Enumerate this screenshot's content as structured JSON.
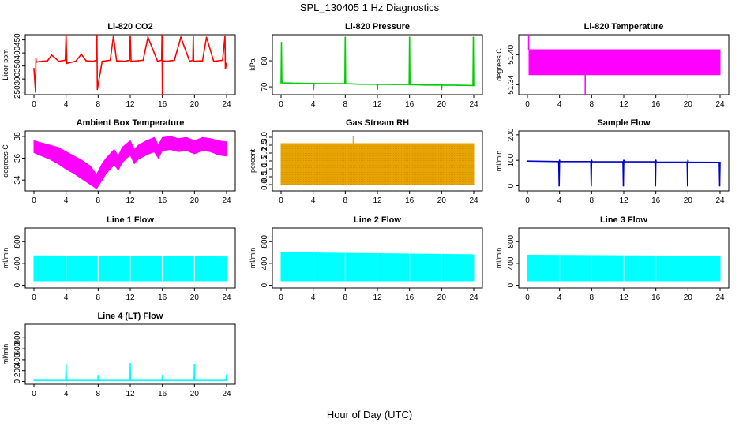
{
  "figure": {
    "title": "SPL_130405  1 Hz Diagnostics",
    "xlabel": "Hour of Day (UTC)"
  },
  "chart_data": [
    {
      "type": "line",
      "title": "Li-820 CO2",
      "ylabel": "Licor ppm",
      "color": "#ff0000",
      "xlim": [
        0,
        24
      ],
      "xticks": [
        0,
        4,
        8,
        12,
        16,
        20,
        24
      ],
      "ylim": [
        240,
        470
      ],
      "yticks": [
        250,
        300,
        350,
        400,
        450
      ],
      "series": [
        {
          "x": [
            0,
            0.2,
            0.25,
            0.3,
            1,
            1.7,
            2.2,
            3.1,
            3.9,
            4.0,
            4.1,
            5.2,
            5.9,
            6.5,
            7.4,
            7.8,
            7.85,
            7.9,
            8.5,
            9.5,
            9.9,
            10.3,
            11.3,
            11.9,
            12.0,
            12.1,
            13.0,
            13.6,
            14.2,
            15.4,
            15.9,
            15.95,
            16.0,
            16.05,
            16.5,
            17.5,
            18.3,
            19.4,
            19.8,
            19.85,
            19.9,
            21.0,
            21.5,
            22.4,
            23.5,
            23.8,
            23.85,
            24
          ],
          "y": [
            340,
            250,
            380,
            365,
            368,
            370,
            392,
            368,
            372,
            470,
            360,
            368,
            395,
            370,
            368,
            372,
            470,
            260,
            368,
            372,
            465,
            370,
            368,
            372,
            465,
            368,
            370,
            372,
            460,
            368,
            372,
            470,
            240,
            370,
            368,
            372,
            460,
            368,
            372,
            465,
            368,
            370,
            460,
            368,
            372,
            465,
            340,
            360
          ]
        }
      ]
    },
    {
      "type": "line",
      "title": "Li-820 Pressure",
      "ylabel": "kPa",
      "color": "#00cc00",
      "xlim": [
        0,
        24
      ],
      "xticks": [
        0,
        4,
        8,
        12,
        16,
        20,
        24
      ],
      "ylim": [
        67,
        90
      ],
      "yticks": [
        70,
        80
      ],
      "series": [
        {
          "x": [
            0,
            0.05,
            0.1,
            0.2,
            2,
            4,
            4.05,
            4.1,
            6,
            7.95,
            8.0,
            8.05,
            10,
            11.95,
            12.0,
            12.05,
            14,
            15.95,
            16.0,
            16.05,
            18,
            19.95,
            20.0,
            20.05,
            22,
            23.9,
            23.95,
            24
          ],
          "y": [
            71.5,
            87,
            72,
            71.5,
            71.4,
            71.3,
            69,
            71.3,
            71.2,
            71.2,
            89,
            71.2,
            71.0,
            71.0,
            69,
            71.0,
            70.9,
            70.9,
            89,
            70.8,
            70.7,
            70.7,
            69,
            70.7,
            70.6,
            70.5,
            89,
            70.5
          ]
        }
      ]
    },
    {
      "type": "area",
      "title": "Li-820 Temperature",
      "ylabel": "degrees C",
      "color": "#ff00ff",
      "xlim": [
        0,
        24
      ],
      "xticks": [
        0,
        4,
        8,
        12,
        16,
        20,
        24
      ],
      "ylim": [
        51.32,
        51.44
      ],
      "yticks": [
        51.34,
        51.4
      ],
      "series": [
        {
          "name": "upper",
          "x": [
            0.2,
            24
          ],
          "y": [
            51.41,
            51.41
          ]
        },
        {
          "name": "lower",
          "x": [
            0.2,
            24
          ],
          "y": [
            51.36,
            51.36
          ]
        },
        {
          "name": "spikes",
          "x": [
            0.15,
            7.2
          ],
          "y": [
            51.44,
            51.32
          ]
        }
      ]
    },
    {
      "type": "area",
      "title": "Ambient Box Temperature",
      "ylabel": "degrees C",
      "color": "#ff00ff",
      "xlim": [
        0,
        24
      ],
      "xticks": [
        0,
        4,
        8,
        12,
        16,
        20,
        24
      ],
      "ylim": [
        33,
        38.5
      ],
      "yticks": [
        34,
        36,
        38
      ],
      "series": [
        {
          "name": "upper",
          "x": [
            0,
            1,
            2,
            3,
            4,
            5,
            6,
            7,
            7.8,
            8.5,
            9,
            10,
            10.5,
            11,
            12,
            12.5,
            13,
            14,
            15,
            15.5,
            16,
            17,
            18,
            19,
            20,
            21,
            22,
            23,
            24
          ],
          "y": [
            37.6,
            37.4,
            37.2,
            37.0,
            36.6,
            36.2,
            35.8,
            35.3,
            34.5,
            35.5,
            36.0,
            36.8,
            36.2,
            37.0,
            37.6,
            36.8,
            37.2,
            37.6,
            37.9,
            37.2,
            37.9,
            38.0,
            37.8,
            37.9,
            37.6,
            37.9,
            37.8,
            37.6,
            37.5
          ]
        },
        {
          "name": "lower",
          "x": [
            0,
            1,
            2,
            3,
            4,
            5,
            6,
            7,
            7.8,
            8.5,
            9,
            10,
            10.5,
            11,
            12,
            12.5,
            13,
            14,
            15,
            15.5,
            16,
            17,
            18,
            19,
            20,
            21,
            22,
            23,
            24
          ],
          "y": [
            36.5,
            36.2,
            35.9,
            35.5,
            35.0,
            34.6,
            34.1,
            33.6,
            33.2,
            34.0,
            34.6,
            35.4,
            34.9,
            35.6,
            36.3,
            35.5,
            35.9,
            36.3,
            36.6,
            36.0,
            36.7,
            36.8,
            36.6,
            36.7,
            36.4,
            36.7,
            36.6,
            36.3,
            36.2
          ]
        }
      ]
    },
    {
      "type": "scatter",
      "title": "Gas Stream RH",
      "ylabel": "percent",
      "color": "#e6a500",
      "xlim": [
        0,
        24
      ],
      "xticks": [
        0,
        4,
        8,
        12,
        16,
        20,
        24
      ],
      "ylim": [
        -0.4,
        3.4
      ],
      "yticks": [
        0.0,
        0.5,
        1.0,
        1.5,
        2.0,
        2.5,
        3.0
      ],
      "series": [
        {
          "name": "upper",
          "x": [
            0,
            24
          ],
          "y": [
            2.6,
            2.6
          ]
        },
        {
          "name": "lower",
          "x": [
            0,
            24
          ],
          "y": [
            0.0,
            0.0
          ]
        },
        {
          "name": "peak",
          "x": [
            9.0
          ],
          "y": [
            3.1
          ]
        }
      ]
    },
    {
      "type": "line",
      "title": "Sample Flow",
      "ylabel": "ml/min",
      "color": "#0000cc",
      "xlim": [
        0,
        24
      ],
      "xticks": [
        0,
        4,
        8,
        12,
        16,
        20,
        24
      ],
      "ylim": [
        -20,
        215
      ],
      "yticks": [
        0,
        100,
        200
      ],
      "series": [
        {
          "x": [
            0,
            3.9,
            3.95,
            4.0,
            4.05,
            7.9,
            7.95,
            8.0,
            8.05,
            11.9,
            11.95,
            12.0,
            12.05,
            15.9,
            15.95,
            16.0,
            16.05,
            19.9,
            19.95,
            20.0,
            20.05,
            23.9,
            23.95,
            24
          ],
          "y": [
            97,
            95,
            0,
            100,
            95,
            95,
            0,
            100,
            94,
            94,
            0,
            100,
            94,
            94,
            0,
            100,
            93,
            93,
            0,
            100,
            93,
            92,
            0,
            92
          ]
        }
      ]
    },
    {
      "type": "area",
      "title": "Line 1 Flow",
      "ylabel": "ml/min",
      "color": "#00ffff",
      "xlim": [
        0,
        24
      ],
      "xticks": [
        0,
        4,
        8,
        12,
        16,
        20,
        24
      ],
      "ylim": [
        -50,
        1050
      ],
      "yticks": [
        0,
        400,
        800
      ],
      "series": [
        {
          "name": "upper",
          "x": [
            0,
            24
          ],
          "y": [
            540,
            520
          ]
        },
        {
          "name": "lower",
          "x": [
            0,
            24
          ],
          "y": [
            80,
            80
          ]
        }
      ]
    },
    {
      "type": "area",
      "title": "Line 2 Flow",
      "ylabel": "ml/min",
      "color": "#00ffff",
      "xlim": [
        0,
        24
      ],
      "xticks": [
        0,
        4,
        8,
        12,
        16,
        20,
        24
      ],
      "ylim": [
        -50,
        1050
      ],
      "yticks": [
        0,
        400,
        800
      ],
      "series": [
        {
          "name": "upper",
          "x": [
            0,
            24
          ],
          "y": [
            600,
            560
          ]
        },
        {
          "name": "lower",
          "x": [
            0,
            24
          ],
          "y": [
            80,
            80
          ]
        }
      ]
    },
    {
      "type": "area",
      "title": "Line 3 Flow",
      "ylabel": "ml/min",
      "color": "#00ffff",
      "xlim": [
        0,
        24
      ],
      "xticks": [
        0,
        4,
        8,
        12,
        16,
        20,
        24
      ],
      "ylim": [
        -50,
        1050
      ],
      "yticks": [
        0,
        400,
        800
      ],
      "series": [
        {
          "name": "upper",
          "x": [
            0,
            24
          ],
          "y": [
            550,
            530
          ]
        },
        {
          "name": "lower",
          "x": [
            0,
            24
          ],
          "y": [
            80,
            80
          ]
        }
      ]
    },
    {
      "type": "line",
      "title": "Line 4 (LT) Flow",
      "ylabel": "ml/min",
      "color": "#00ffff",
      "xlim": [
        0,
        24
      ],
      "xticks": [
        0,
        4,
        8,
        12,
        16,
        20,
        24
      ],
      "ylim": [
        -50,
        1050
      ],
      "yticks": [
        0,
        200,
        400,
        600,
        800
      ],
      "series": [
        {
          "x": [
            0,
            3.95,
            4.0,
            4.05,
            7.95,
            8.0,
            8.05,
            11.95,
            12.0,
            12.05,
            15.95,
            16.0,
            16.05,
            19.95,
            20.0,
            20.05,
            23.95,
            24.0
          ],
          "y": [
            20,
            20,
            320,
            20,
            20,
            110,
            20,
            20,
            330,
            20,
            20,
            110,
            20,
            20,
            310,
            20,
            20,
            120
          ]
        }
      ]
    }
  ]
}
